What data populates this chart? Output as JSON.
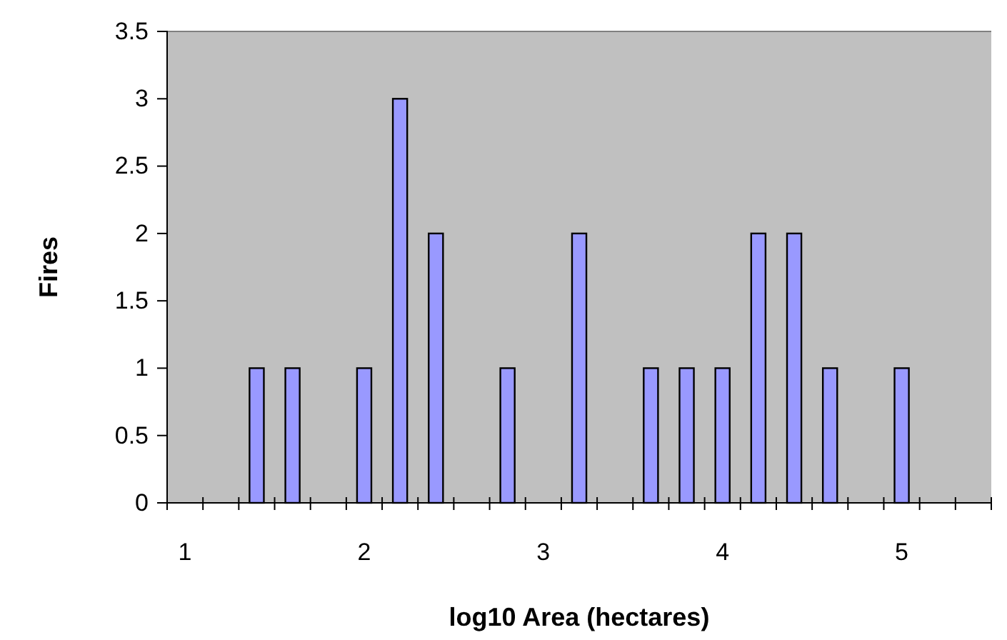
{
  "chart_data": {
    "type": "bar",
    "xlabel": "log10 Area (hectares)",
    "ylabel": "Fires",
    "categories": [
      "1",
      null,
      null,
      null,
      null,
      "2",
      null,
      null,
      null,
      null,
      "3",
      null,
      null,
      null,
      null,
      "4",
      null,
      null,
      null,
      null,
      "5",
      null,
      null
    ],
    "values": [
      0,
      0,
      1,
      1,
      0,
      1,
      3,
      2,
      0,
      1,
      0,
      2,
      0,
      1,
      1,
      1,
      2,
      2,
      1,
      0,
      1,
      0,
      0
    ],
    "color": "#9999ff",
    "ylim": [
      0,
      3.5
    ],
    "yticks": [
      0,
      0.5,
      1,
      1.5,
      2,
      2.5,
      3,
      3.5
    ],
    "grid": false
  }
}
